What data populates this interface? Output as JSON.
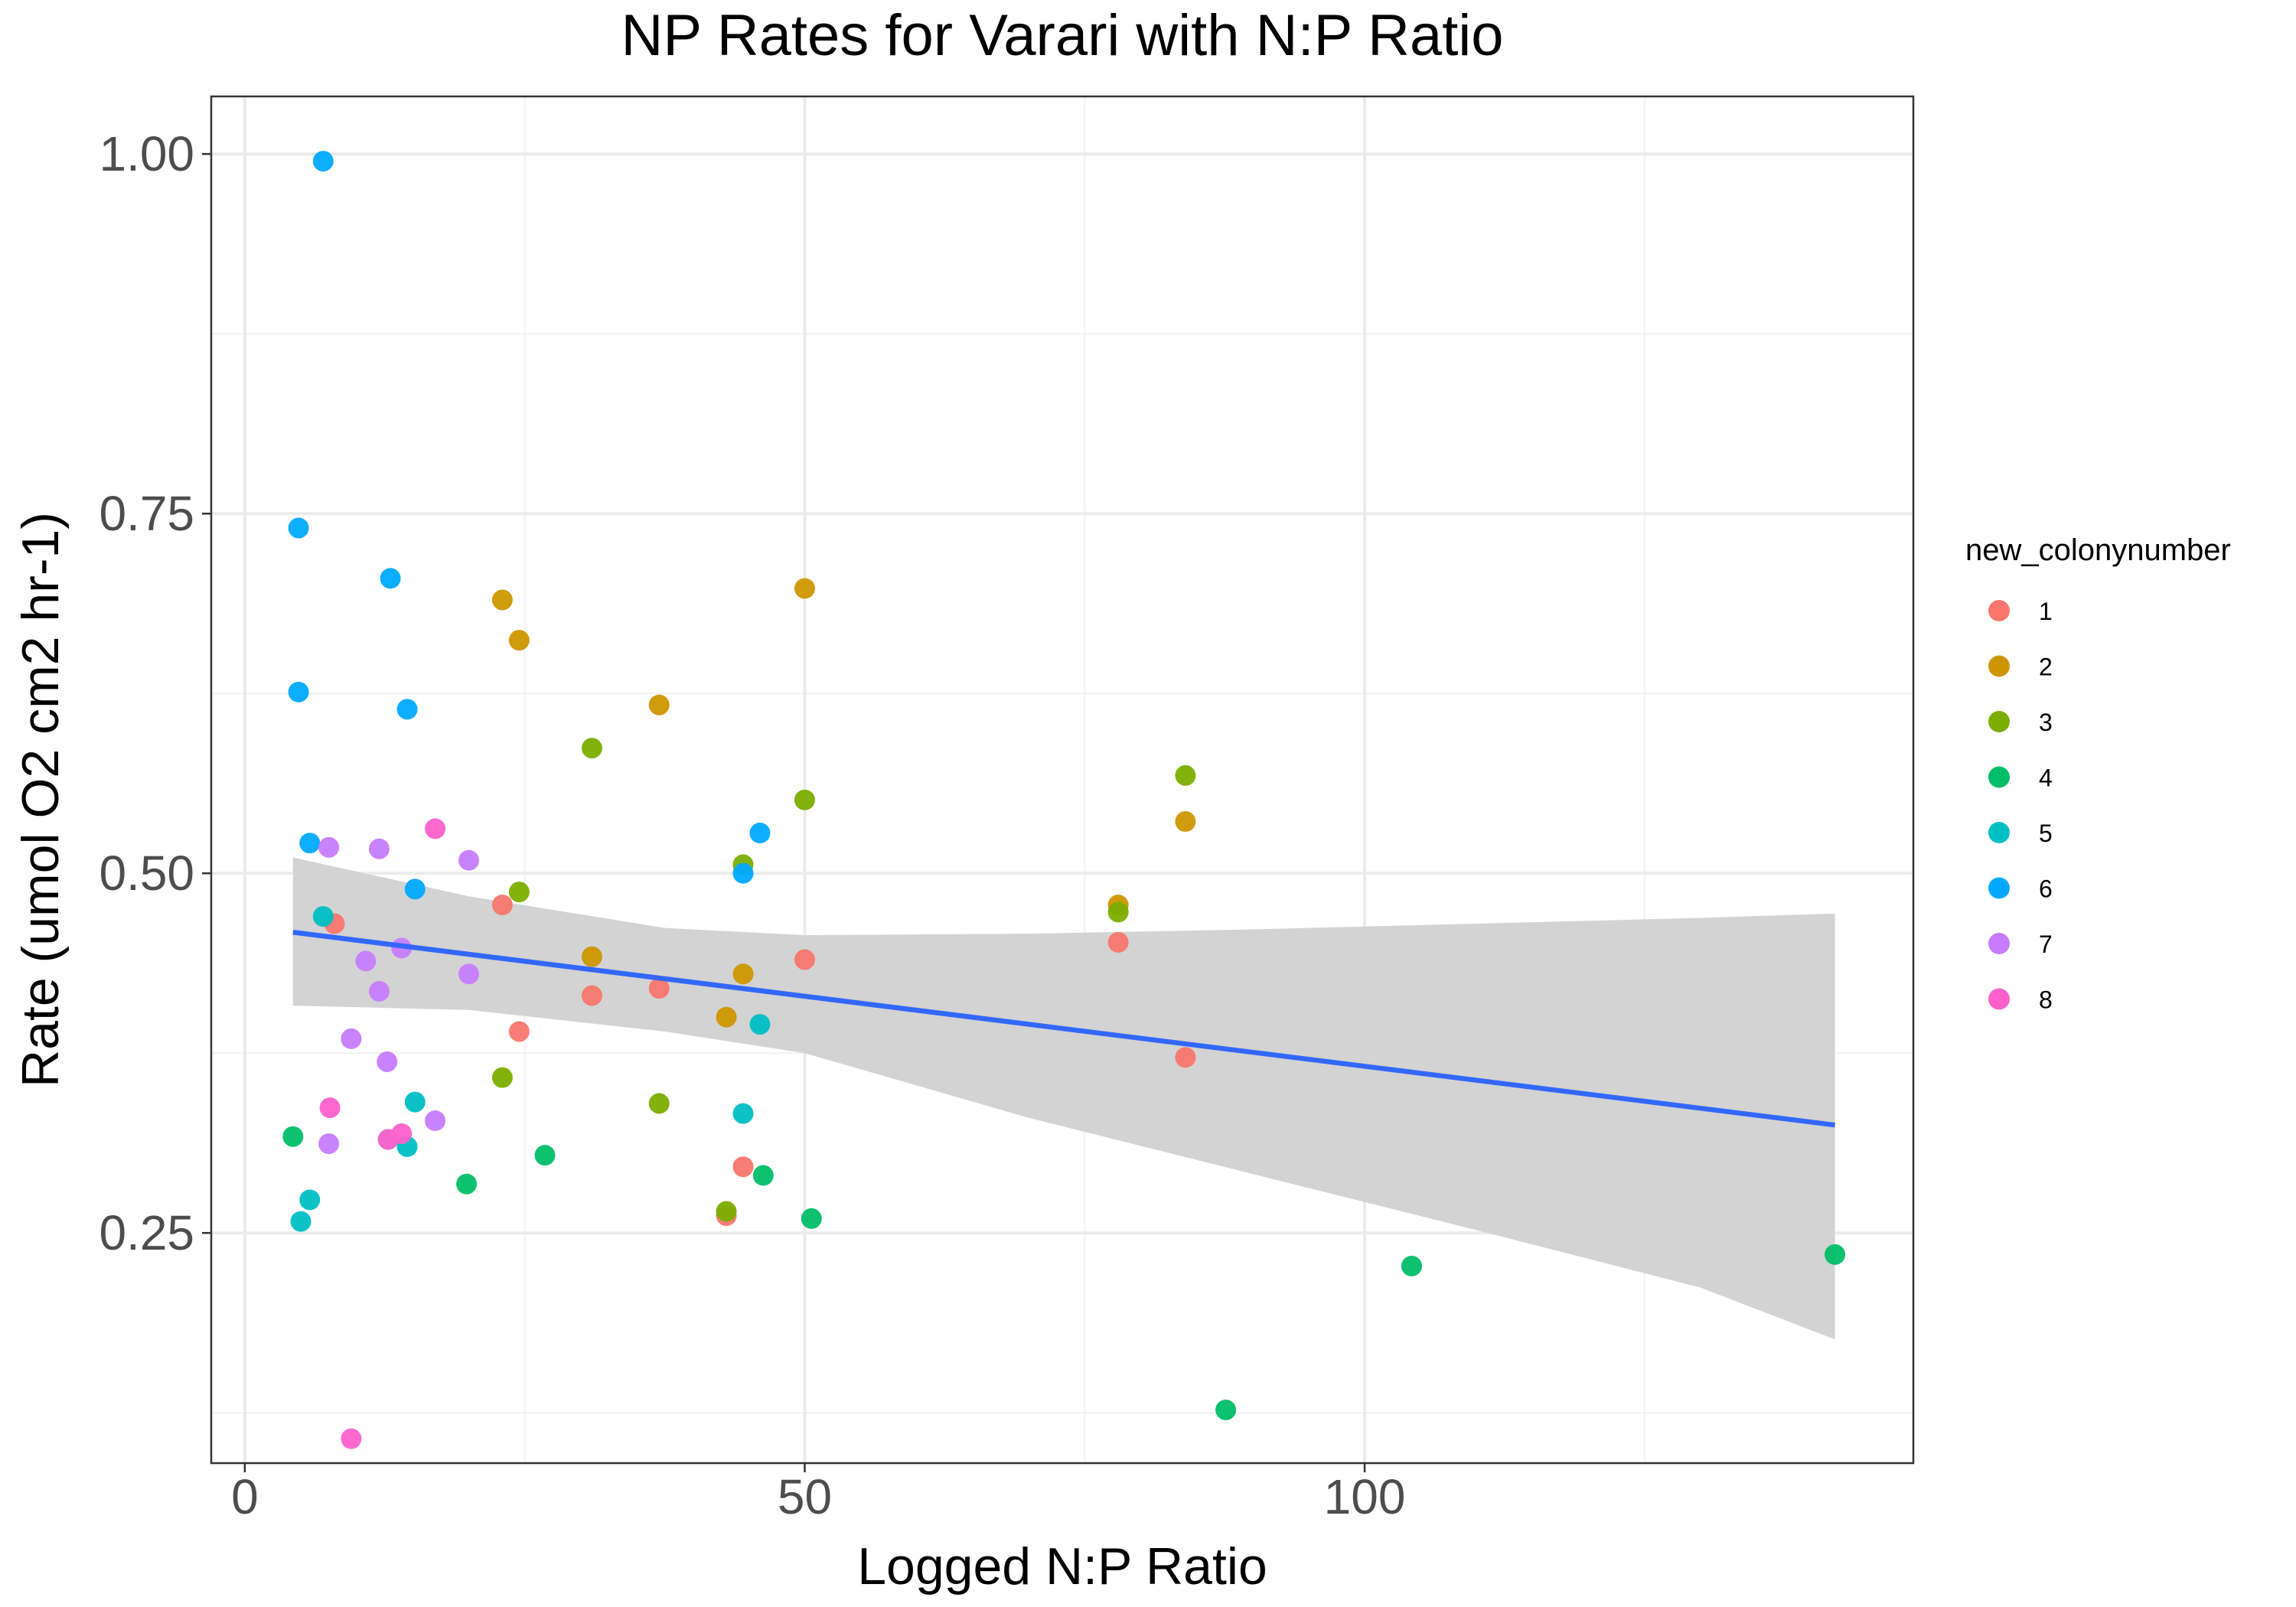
{
  "chart_data": {
    "type": "scatter",
    "title": "NP Rates for Varari with N:P Ratio",
    "xlabel": "Logged N:P Ratio",
    "ylabel": "Rate (umol O2 cm2 hr-1)",
    "xlim": [
      -3,
      149
    ],
    "ylim": [
      0.09,
      1.04
    ],
    "xticks": [
      0,
      50,
      100
    ],
    "xtick_labels": [
      "0",
      "50",
      "100"
    ],
    "yticks": [
      0.25,
      0.5,
      0.75,
      1.0
    ],
    "ytick_labels": [
      "0.25",
      "0.50",
      "0.75",
      "1.00"
    ],
    "x_minor_grid": [
      25,
      75,
      125
    ],
    "y_minor_grid": [
      0.125,
      0.375,
      0.625,
      0.875
    ],
    "grid": true,
    "legend": {
      "title": "new_colonynumber",
      "position": "right"
    },
    "series": [
      {
        "name": "1",
        "color": "#F8766D",
        "points": [
          [
            8,
            0.465
          ],
          [
            23,
            0.478
          ],
          [
            24.5,
            0.39
          ],
          [
            31,
            0.415
          ],
          [
            37,
            0.42
          ],
          [
            43,
            0.262
          ],
          [
            44.5,
            0.296
          ],
          [
            50,
            0.44
          ],
          [
            78,
            0.452
          ],
          [
            84,
            0.372
          ]
        ]
      },
      {
        "name": "2",
        "color": "#CD9600",
        "points": [
          [
            23,
            0.69
          ],
          [
            24.5,
            0.662
          ],
          [
            31,
            0.442
          ],
          [
            37,
            0.617
          ],
          [
            43,
            0.4
          ],
          [
            44.5,
            0.43
          ],
          [
            50,
            0.698
          ],
          [
            78,
            0.478
          ],
          [
            84,
            0.536
          ]
        ]
      },
      {
        "name": "3",
        "color": "#7CAE00",
        "points": [
          [
            23,
            0.358
          ],
          [
            24.5,
            0.487
          ],
          [
            31,
            0.587
          ],
          [
            37,
            0.34
          ],
          [
            43,
            0.265
          ],
          [
            44.5,
            0.506
          ],
          [
            50,
            0.551
          ],
          [
            78,
            0.473
          ],
          [
            84,
            0.568
          ]
        ]
      },
      {
        "name": "4",
        "color": "#00BE67",
        "points": [
          [
            4.3,
            0.317
          ],
          [
            19.8,
            0.284
          ],
          [
            26.8,
            0.304
          ],
          [
            46.3,
            0.29
          ],
          [
            50.6,
            0.26
          ],
          [
            87.6,
            0.127
          ],
          [
            104.2,
            0.227
          ],
          [
            142,
            0.235
          ]
        ]
      },
      {
        "name": "5",
        "color": "#00BFC4",
        "points": [
          [
            5,
            0.258
          ],
          [
            5.8,
            0.273
          ],
          [
            7,
            0.47
          ],
          [
            12.8,
            0.315
          ],
          [
            14.5,
            0.31
          ],
          [
            15.2,
            0.341
          ],
          [
            44.5,
            0.333
          ],
          [
            46,
            0.395
          ]
        ]
      },
      {
        "name": "6",
        "color": "#00A9FF",
        "points": [
          [
            4.8,
            0.74
          ],
          [
            4.8,
            0.626
          ],
          [
            5.8,
            0.521
          ],
          [
            7,
            0.995
          ],
          [
            13,
            0.705
          ],
          [
            14.5,
            0.614
          ],
          [
            15.2,
            0.489
          ],
          [
            44.5,
            0.5
          ],
          [
            46,
            0.528
          ]
        ]
      },
      {
        "name": "7",
        "color": "#C77CFF",
        "points": [
          [
            7.5,
            0.518
          ],
          [
            7.5,
            0.312
          ],
          [
            9.5,
            0.385
          ],
          [
            10.8,
            0.439
          ],
          [
            12,
            0.418
          ],
          [
            12,
            0.517
          ],
          [
            12.7,
            0.369
          ],
          [
            14,
            0.448
          ],
          [
            17,
            0.328
          ],
          [
            20,
            0.509
          ],
          [
            20,
            0.43
          ]
        ]
      },
      {
        "name": "8",
        "color": "#FF61CC",
        "points": [
          [
            7.6,
            0.337
          ],
          [
            9.5,
            0.107
          ],
          [
            12.8,
            0.315
          ],
          [
            14,
            0.319
          ],
          [
            17,
            0.531
          ]
        ]
      }
    ],
    "trend_line": {
      "color": "#3366FF",
      "x": [
        4.3,
        142
      ],
      "y": [
        0.459,
        0.325
      ]
    },
    "confidence_band": {
      "color": "#D3D3D3",
      "x": [
        4.3,
        20,
        37.5,
        50,
        70,
        90,
        110,
        130,
        142
      ],
      "upper": [
        0.511,
        0.484,
        0.462,
        0.457,
        0.458,
        0.461,
        0.465,
        0.469,
        0.472
      ],
      "lower": [
        0.408,
        0.405,
        0.39,
        0.375,
        0.33,
        0.291,
        0.252,
        0.212,
        0.176
      ]
    }
  }
}
